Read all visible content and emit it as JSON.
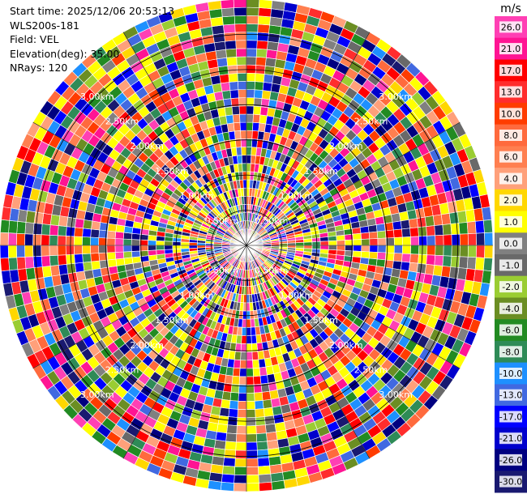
{
  "header": {
    "start_time": "Start time: 2025/12/06 20:53:13",
    "instrument": "WLS200s-181",
    "field": "Field: VEL",
    "elevation": "Elevation(deg): 35.00",
    "nrays": "NRays: 120"
  },
  "chart_data": {
    "type": "heatmap",
    "projection": "polar",
    "field": "VEL",
    "rays": 120,
    "range_rings_km": [
      0.5,
      1.0,
      1.5,
      2.0,
      2.5,
      3.0
    ],
    "ring_labels": [
      "0.50km",
      "1.00km",
      "1.50km",
      "2.00km",
      "2.50km",
      "3.00km"
    ],
    "colorbar": {
      "unit": "m/s",
      "ticks": [
        "26.0",
        "21.0",
        "17.0",
        "13.0",
        "10.0",
        "8.0",
        "6.0",
        "4.0",
        "2.0",
        "1.0",
        "0.0",
        "-1.0",
        "-2.0",
        "-4.0",
        "-6.0",
        "-8.0",
        "-10.0",
        "-13.0",
        "-17.0",
        "-21.0",
        "-26.0",
        "-30.0"
      ],
      "colors": [
        "#ff40b4",
        "#ff1493",
        "#ff0000",
        "#ff2d2d",
        "#ff3c00",
        "#ff6a3d",
        "#ff7f50",
        "#ffa07a",
        "#ffd700",
        "#ffff00",
        "#808080",
        "#696969",
        "#9acd32",
        "#6b8e23",
        "#228b22",
        "#2e8b57",
        "#1e90ff",
        "#4169e1",
        "#0000ff",
        "#0000cd",
        "#000080",
        "#191970"
      ]
    }
  }
}
